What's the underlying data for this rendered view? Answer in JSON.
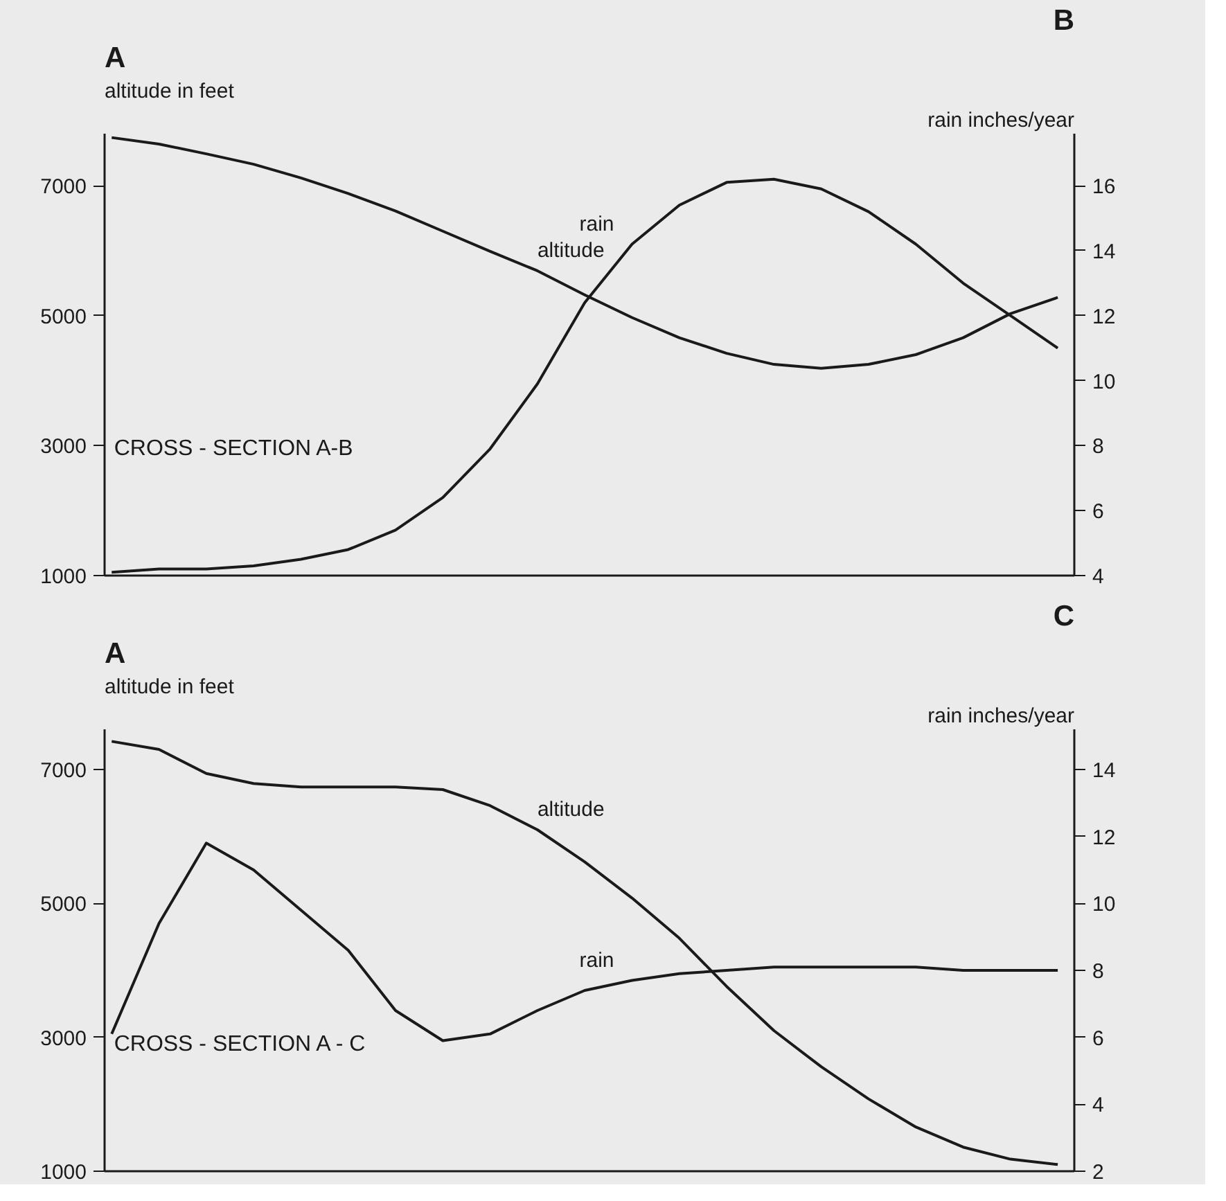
{
  "chart_data": [
    {
      "type": "line",
      "annotations": [
        "A",
        "B",
        "CROSS - SECTION A-B"
      ],
      "ylabel": "altitude in feet",
      "y2label": "rain inches/year",
      "categories": [
        null,
        null,
        null,
        null,
        null,
        null,
        null,
        null,
        null,
        null,
        null,
        null,
        null,
        null,
        null,
        null,
        null,
        null,
        null,
        null,
        null
      ],
      "ylim": [
        1000,
        7800
      ],
      "yticks": [
        1000,
        3000,
        5000,
        7000
      ],
      "y2lim": [
        4,
        17.6
      ],
      "y2ticks": [
        4,
        6,
        8,
        10,
        12,
        14,
        16
      ],
      "grid": false,
      "marker": "none",
      "line_style": "solid",
      "series": [
        {
          "name": "altitude",
          "color": "#1a1a1a",
          "values": [
            7740,
            7640,
            7490,
            7330,
            7120,
            6880,
            6610,
            6300,
            5990,
            5690,
            5320,
            4970,
            4660,
            4420,
            4250,
            4190,
            4250,
            4400,
            4660,
            5030,
            5280
          ]
        },
        {
          "name": "rain",
          "color": "#1a1a1a",
          "axis": "y2",
          "values": [
            4.1,
            4.2,
            4.2,
            4.3,
            4.5,
            4.8,
            5.4,
            6.4,
            7.9,
            9.9,
            12.4,
            14.2,
            15.4,
            16.1,
            16.2,
            15.9,
            15.2,
            14.2,
            13.0,
            12.0,
            11.0
          ]
        }
      ]
    },
    {
      "type": "line",
      "annotations": [
        "A",
        "C",
        "CROSS - SECTION A - C"
      ],
      "ylabel": "altitude in feet",
      "y2label": "rain inches/year",
      "categories": [
        null,
        null,
        null,
        null,
        null,
        null,
        null,
        null,
        null,
        null,
        null,
        null,
        null,
        null,
        null,
        null,
        null,
        null,
        null,
        null,
        null
      ],
      "ylim": [
        1000,
        7600
      ],
      "yticks": [
        1000,
        3000,
        5000,
        7000
      ],
      "y2lim": [
        2,
        15.2
      ],
      "y2ticks": [
        2,
        4,
        6,
        8,
        10,
        12,
        14
      ],
      "grid": false,
      "marker": "none",
      "line_style": "solid",
      "series": [
        {
          "name": "altitude",
          "color": "#1a1a1a",
          "values": [
            7420,
            7300,
            6940,
            6790,
            6740,
            6740,
            6740,
            6700,
            6460,
            6100,
            5620,
            5080,
            4480,
            3760,
            3100,
            2560,
            2080,
            1660,
            1360,
            1180,
            1100
          ]
        },
        {
          "name": "rain",
          "color": "#1a1a1a",
          "axis": "y2",
          "values": [
            6.1,
            9.4,
            11.8,
            11.0,
            9.8,
            8.6,
            6.8,
            5.9,
            6.1,
            6.8,
            7.4,
            7.7,
            7.9,
            8.0,
            8.1,
            8.1,
            8.1,
            8.1,
            8.0,
            8.0,
            8.0
          ]
        }
      ]
    }
  ]
}
